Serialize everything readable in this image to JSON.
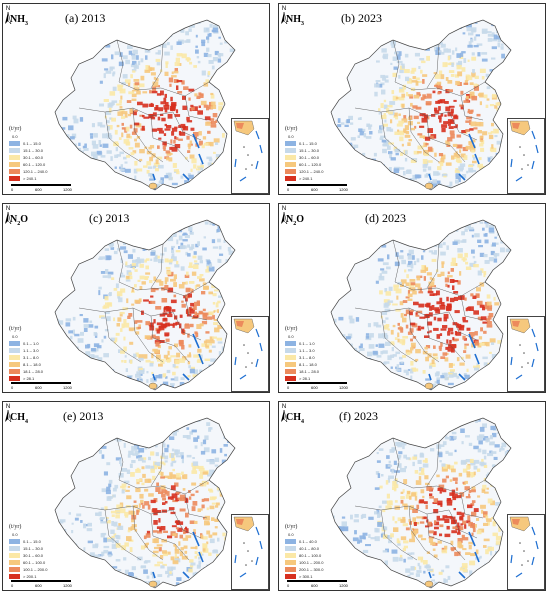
{
  "unit": "(t/yr)",
  "legend_colors": [
    "#8db3e2",
    "#c6d9ea",
    "#fbe8a6",
    "#f6c87d",
    "#ec8a5c",
    "#d7301f"
  ],
  "panels": [
    {
      "gas": "NH",
      "sub": "3",
      "title": "(a) 2013",
      "zero": "0.0",
      "classes": [
        "0.1 – 15.0",
        "15.1 – 30.0",
        "30.1 – 60.0",
        "60.1 – 120.0",
        "120.1 – 240.0",
        "> 240.1"
      ],
      "scale": [
        "0",
        "600",
        "1200"
      ],
      "intensity": 0.7
    },
    {
      "gas": "NH",
      "sub": "3",
      "title": "(b) 2023",
      "zero": "0.0",
      "classes": [
        "0.1 – 15.0",
        "15.1 – 30.0",
        "30.1 – 60.0",
        "60.1 – 120.0",
        "120.1 – 240.0",
        "> 240.1"
      ],
      "scale": [
        "0",
        "600",
        "1200"
      ],
      "intensity": 0.6
    },
    {
      "gas": "N",
      "sub": "2",
      "gas_suffix": "O",
      "title": "(c) 2013",
      "zero": "0.0",
      "classes": [
        "0.1 – 1.0",
        "1.1 – 3.0",
        "3.1 – 8.0",
        "8.1 – 18.0",
        "18.1 – 28.0",
        "> 28.1"
      ],
      "scale": [
        "0",
        "600",
        "1200"
      ],
      "intensity": 0.6
    },
    {
      "gas": "N",
      "sub": "2",
      "gas_suffix": "O",
      "title": "(d) 2023",
      "zero": "0.0",
      "classes": [
        "0.1 – 1.0",
        "1.1 – 3.0",
        "3.1 – 8.0",
        "8.1 – 18.0",
        "18.1 – 28.0",
        "> 28.1"
      ],
      "scale": [
        "0",
        "600",
        "1200"
      ],
      "intensity": 0.75
    },
    {
      "gas": "CH",
      "sub": "4",
      "title": "(e) 2013",
      "zero": "0.0",
      "classes": [
        "0.1 – 15.0",
        "15.1 – 30.0",
        "30.1 – 60.0",
        "60.1 – 100.0",
        "100.1 – 200.0",
        "> 200.1"
      ],
      "scale": [
        "0",
        "600",
        "1200"
      ],
      "intensity": 0.55
    },
    {
      "gas": "CH",
      "sub": "4",
      "title": "(f) 2023",
      "zero": "0.0",
      "classes": [
        "0.1 – 40.0",
        "40.1 – 80.0",
        "80.1 – 100.0",
        "100.1 – 200.0",
        "200.1 – 300.0",
        "> 300.1"
      ],
      "scale": [
        "0",
        "600",
        "1200"
      ],
      "intensity": 0.6
    }
  ]
}
